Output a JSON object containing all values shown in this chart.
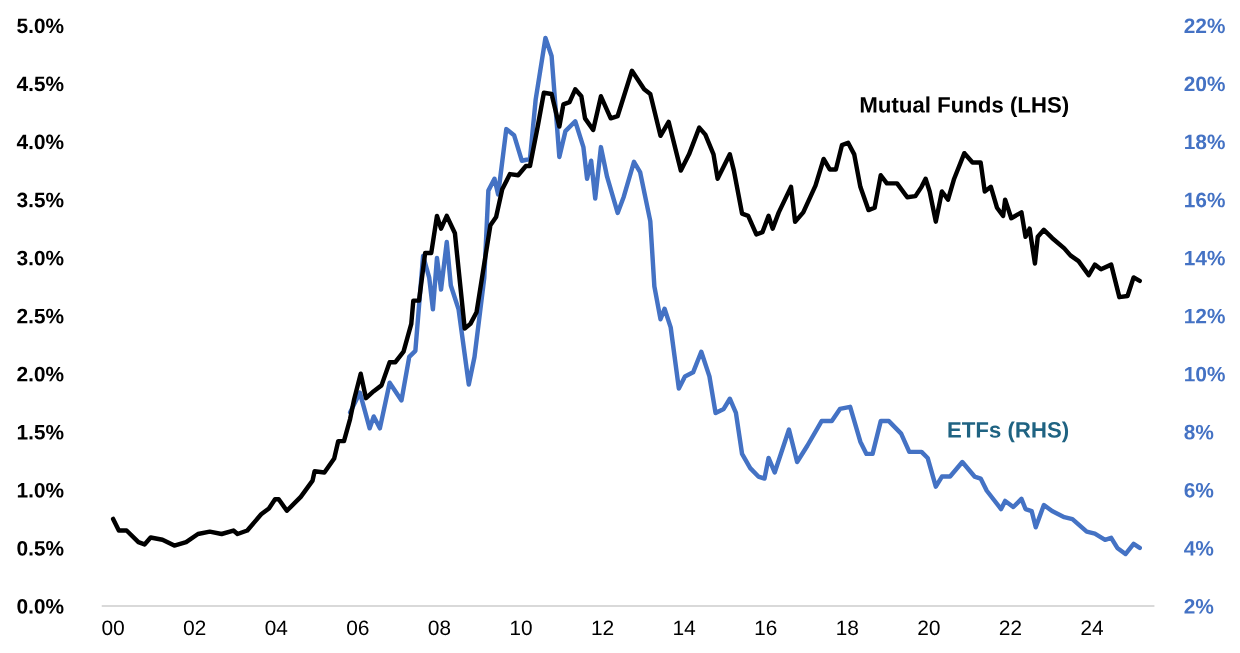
{
  "chart_data": {
    "type": "line",
    "xlim": [
      1999.75,
      2025.5
    ],
    "xticks": [
      {
        "value": 2000,
        "label": "00"
      },
      {
        "value": 2002,
        "label": "02"
      },
      {
        "value": 2004,
        "label": "04"
      },
      {
        "value": 2006,
        "label": "06"
      },
      {
        "value": 2008,
        "label": "08"
      },
      {
        "value": 2010,
        "label": "10"
      },
      {
        "value": 2012,
        "label": "12"
      },
      {
        "value": 2014,
        "label": "14"
      },
      {
        "value": 2016,
        "label": "16"
      },
      {
        "value": 2018,
        "label": "18"
      },
      {
        "value": 2020,
        "label": "20"
      },
      {
        "value": 2022,
        "label": "22"
      },
      {
        "value": 2024,
        "label": "24"
      }
    ],
    "ylim": [
      0,
      5
    ],
    "yticks": [
      {
        "value": 0,
        "label": "0.0%"
      },
      {
        "value": 0.5,
        "label": "0.5%"
      },
      {
        "value": 1,
        "label": "1.0%"
      },
      {
        "value": 1.5,
        "label": "1.5%"
      },
      {
        "value": 2,
        "label": "2.0%"
      },
      {
        "value": 2.5,
        "label": "2.5%"
      },
      {
        "value": 3,
        "label": "3.0%"
      },
      {
        "value": 3.5,
        "label": "3.5%"
      },
      {
        "value": 4,
        "label": "4.0%"
      },
      {
        "value": 4.5,
        "label": "4.5%"
      },
      {
        "value": 5,
        "label": "5.0%"
      }
    ],
    "y2lim": [
      2,
      22
    ],
    "y2ticks": [
      {
        "value": 2,
        "label": "2%"
      },
      {
        "value": 4,
        "label": "4%"
      },
      {
        "value": 6,
        "label": "6%"
      },
      {
        "value": 8,
        "label": "8%"
      },
      {
        "value": 10,
        "label": "10%"
      },
      {
        "value": 12,
        "label": "12%"
      },
      {
        "value": 14,
        "label": "14%"
      },
      {
        "value": 16,
        "label": "16%"
      },
      {
        "value": 18,
        "label": "18%"
      },
      {
        "value": 20,
        "label": "20%"
      },
      {
        "value": 22,
        "label": "22%"
      }
    ],
    "grid": false,
    "legend": false,
    "marker": "none",
    "line_style": "solid",
    "series": [
      {
        "name": "Mutual Funds (LHS)",
        "color": "#000000",
        "x": [
          2000.0,
          2000.14,
          2000.33,
          2000.62,
          2000.77,
          2000.92,
          2001.21,
          2001.5,
          2001.79,
          2002.08,
          2002.37,
          2002.66,
          2002.95,
          2003.05,
          2003.29,
          2003.63,
          2003.82,
          2003.97,
          2004.06,
          2004.26,
          2004.6,
          2004.89,
          2004.94,
          2005.18,
          2005.42,
          2005.52,
          2005.66,
          2005.81,
          2005.91,
          2006.07,
          2006.2,
          2006.39,
          2006.58,
          2006.78,
          2006.92,
          2007.12,
          2007.31,
          2007.36,
          2007.5,
          2007.65,
          2007.8,
          2007.94,
          2008.04,
          2008.18,
          2008.38,
          2008.47,
          2008.62,
          2008.76,
          2008.91,
          2009.05,
          2009.25,
          2009.39,
          2009.54,
          2009.73,
          2009.93,
          2010.12,
          2010.22,
          2010.41,
          2010.56,
          2010.75,
          2010.94,
          2011.04,
          2011.19,
          2011.33,
          2011.48,
          2011.57,
          2011.77,
          2011.96,
          2012.2,
          2012.37,
          2012.72,
          2013.02,
          2013.17,
          2013.42,
          2013.62,
          2013.92,
          2014.12,
          2014.37,
          2014.52,
          2014.72,
          2014.82,
          2015.12,
          2015.22,
          2015.42,
          2015.57,
          2015.77,
          2015.92,
          2016.07,
          2016.17,
          2016.32,
          2016.62,
          2016.72,
          2016.92,
          2017.22,
          2017.42,
          2017.57,
          2017.72,
          2017.87,
          2018.02,
          2018.17,
          2018.32,
          2018.52,
          2018.67,
          2018.82,
          2018.97,
          2019.22,
          2019.47,
          2019.67,
          2019.82,
          2019.92,
          2020.02,
          2020.17,
          2020.32,
          2020.47,
          2020.62,
          2020.87,
          2021.07,
          2021.27,
          2021.37,
          2021.52,
          2021.67,
          2021.82,
          2021.87,
          2022.02,
          2022.27,
          2022.37,
          2022.47,
          2022.6,
          2022.67,
          2022.82,
          2023.02,
          2023.32,
          2023.47,
          2023.67,
          2023.92,
          2024.07,
          2024.22,
          2024.47,
          2024.67,
          2024.87,
          2025.02,
          2025.17
        ],
        "values": [
          0.75,
          0.65,
          0.65,
          0.55,
          0.53,
          0.59,
          0.57,
          0.52,
          0.55,
          0.62,
          0.64,
          0.62,
          0.65,
          0.62,
          0.65,
          0.79,
          0.84,
          0.92,
          0.92,
          0.82,
          0.94,
          1.08,
          1.16,
          1.15,
          1.27,
          1.42,
          1.42,
          1.61,
          1.78,
          2.0,
          1.79,
          1.85,
          1.9,
          2.1,
          2.1,
          2.19,
          2.43,
          2.63,
          2.63,
          3.04,
          3.04,
          3.36,
          3.25,
          3.36,
          3.21,
          2.9,
          2.39,
          2.43,
          2.53,
          2.84,
          3.28,
          3.35,
          3.59,
          3.72,
          3.71,
          3.79,
          3.79,
          4.13,
          4.42,
          4.41,
          4.13,
          4.32,
          4.34,
          4.45,
          4.39,
          4.2,
          4.1,
          4.39,
          4.2,
          4.22,
          4.61,
          4.45,
          4.41,
          4.05,
          4.17,
          3.75,
          3.89,
          4.12,
          4.06,
          3.89,
          3.68,
          3.89,
          3.75,
          3.38,
          3.36,
          3.2,
          3.22,
          3.36,
          3.25,
          3.39,
          3.61,
          3.31,
          3.39,
          3.62,
          3.85,
          3.76,
          3.76,
          3.97,
          3.99,
          3.89,
          3.61,
          3.41,
          3.43,
          3.71,
          3.64,
          3.64,
          3.52,
          3.53,
          3.61,
          3.68,
          3.57,
          3.31,
          3.57,
          3.5,
          3.68,
          3.9,
          3.82,
          3.82,
          3.57,
          3.61,
          3.43,
          3.36,
          3.5,
          3.34,
          3.39,
          3.18,
          3.25,
          2.95,
          3.18,
          3.24,
          3.17,
          3.08,
          3.02,
          2.97,
          2.85,
          2.94,
          2.9,
          2.94,
          2.66,
          2.67,
          2.83,
          2.8
        ]
      },
      {
        "name": "ETFs (RHS)",
        "color": "#4472c4",
        "axis": "y2",
        "x": [
          2005.81,
          2006.05,
          2006.29,
          2006.39,
          2006.54,
          2006.78,
          2007.07,
          2007.26,
          2007.41,
          2007.6,
          2007.75,
          2007.84,
          2007.94,
          2008.04,
          2008.18,
          2008.28,
          2008.47,
          2008.72,
          2008.86,
          2009.1,
          2009.2,
          2009.35,
          2009.44,
          2009.64,
          2009.83,
          2010.02,
          2010.22,
          2010.36,
          2010.6,
          2010.75,
          2010.94,
          2011.09,
          2011.33,
          2011.53,
          2011.62,
          2011.72,
          2011.82,
          2011.96,
          2012.11,
          2012.37,
          2012.52,
          2012.77,
          2012.92,
          2013.17,
          2013.27,
          2013.42,
          2013.52,
          2013.67,
          2013.87,
          2014.02,
          2014.22,
          2014.42,
          2014.62,
          2014.77,
          2014.97,
          2015.12,
          2015.27,
          2015.42,
          2015.62,
          2015.82,
          2015.97,
          2016.07,
          2016.22,
          2016.57,
          2016.77,
          2017.02,
          2017.37,
          2017.62,
          2017.82,
          2018.07,
          2018.32,
          2018.47,
          2018.62,
          2018.82,
          2019.02,
          2019.32,
          2019.52,
          2019.82,
          2019.97,
          2020.17,
          2020.32,
          2020.52,
          2020.82,
          2021.12,
          2021.27,
          2021.42,
          2021.77,
          2021.87,
          2022.07,
          2022.27,
          2022.37,
          2022.52,
          2022.62,
          2022.82,
          2023.02,
          2023.32,
          2023.52,
          2023.87,
          2024.07,
          2024.32,
          2024.47,
          2024.62,
          2024.82,
          2025.02,
          2025.17
        ],
        "values": [
          8.67,
          9.35,
          8.12,
          8.53,
          8.12,
          9.69,
          9.08,
          10.58,
          10.79,
          14.06,
          13.31,
          12.22,
          13.99,
          12.9,
          14.54,
          13.04,
          12.22,
          9.63,
          10.58,
          13.31,
          16.31,
          16.72,
          16.18,
          18.43,
          18.22,
          17.34,
          17.4,
          19.45,
          21.57,
          20.95,
          17.47,
          18.36,
          18.7,
          17.81,
          16.72,
          17.34,
          16.04,
          17.81,
          16.79,
          15.54,
          16.1,
          17.3,
          16.95,
          15.26,
          13.01,
          11.88,
          12.24,
          11.6,
          9.49,
          9.91,
          10.05,
          10.76,
          9.91,
          8.65,
          8.79,
          9.14,
          8.65,
          7.24,
          6.75,
          6.46,
          6.39,
          7.1,
          6.6,
          8.08,
          6.96,
          7.52,
          8.37,
          8.37,
          8.79,
          8.86,
          7.66,
          7.24,
          7.24,
          8.37,
          8.37,
          7.94,
          7.31,
          7.31,
          7.1,
          6.11,
          6.46,
          6.46,
          6.96,
          6.46,
          6.39,
          5.97,
          5.34,
          5.62,
          5.41,
          5.69,
          5.34,
          5.27,
          4.71,
          5.48,
          5.27,
          5.06,
          4.99,
          4.56,
          4.49,
          4.28,
          4.35,
          4.0,
          3.79,
          4.14,
          4.0
        ]
      }
    ]
  }
}
